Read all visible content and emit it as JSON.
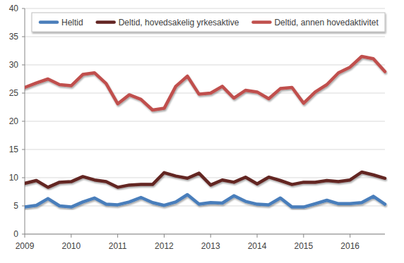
{
  "chart_data": {
    "type": "line",
    "categories": [
      "2009",
      null,
      null,
      null,
      "2010",
      null,
      null,
      null,
      "2011",
      null,
      null,
      null,
      "2012",
      null,
      null,
      null,
      "2013",
      null,
      null,
      null,
      "2014",
      null,
      null,
      null,
      "2015",
      null,
      null,
      null,
      "2016",
      null,
      null,
      null
    ],
    "series": [
      {
        "name": "Heltid",
        "color": "#4a7ebb",
        "values": [
          4.8,
          5.1,
          6.3,
          5.0,
          4.8,
          5.7,
          6.4,
          5.3,
          5.2,
          5.7,
          6.5,
          5.6,
          5.1,
          5.7,
          7.0,
          5.3,
          5.6,
          5.5,
          6.8,
          5.8,
          5.3,
          5.2,
          6.4,
          4.8,
          4.8,
          5.4,
          6.0,
          5.4,
          5.4,
          5.6,
          6.7,
          5.3
        ]
      },
      {
        "name": "Deltid, hovedsakelig yrkesaktive",
        "color": "#632523",
        "values": [
          9.0,
          9.5,
          8.3,
          9.2,
          9.3,
          10.2,
          9.6,
          9.3,
          8.3,
          8.7,
          8.8,
          8.8,
          10.9,
          10.3,
          9.9,
          10.8,
          8.7,
          9.6,
          9.2,
          10.1,
          8.9,
          10.1,
          9.5,
          8.8,
          9.2,
          9.2,
          9.5,
          9.3,
          9.6,
          11.0,
          10.5,
          9.9
        ]
      },
      {
        "name": "Deltid, annen hovedaktivitet",
        "color": "#c0504d",
        "values": [
          26.0,
          26.8,
          27.5,
          26.5,
          26.3,
          28.3,
          28.6,
          26.7,
          23.1,
          24.7,
          23.9,
          22.0,
          22.3,
          26.2,
          28.0,
          24.8,
          25.0,
          26.2,
          24.1,
          25.5,
          25.2,
          24.0,
          25.8,
          26.0,
          23.2,
          25.2,
          26.5,
          28.6,
          29.6,
          31.5,
          31.1,
          28.8
        ]
      }
    ],
    "ylim": [
      0,
      40
    ],
    "yticks": [
      0,
      5,
      10,
      15,
      20,
      25,
      30,
      35,
      40
    ],
    "grid": true,
    "legend": "top"
  }
}
